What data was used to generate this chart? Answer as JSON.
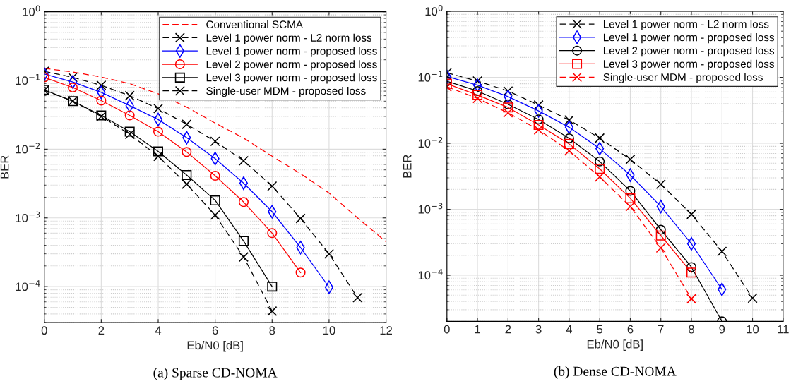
{
  "chart_data": [
    {
      "type": "line",
      "title": "(a) Sparse CD-NOMA",
      "xlabel": "Eb/N0 [dB]",
      "ylabel": "BER",
      "log": true,
      "grid": true,
      "legend": "top right",
      "xlim": [
        0,
        12
      ],
      "xticks": [
        0,
        2,
        4,
        6,
        8,
        10,
        12
      ],
      "ylim": [
        3e-05,
        1
      ],
      "yticks": [
        {
          "value": 1,
          "label": "10$^{0}$"
        },
        {
          "value": 0.1,
          "label": "10$^{−1}$"
        },
        {
          "value": 0.01,
          "label": "10$^{−2}$"
        },
        {
          "value": 0.001,
          "label": "10$^{−3}$"
        },
        {
          "value": 0.0001,
          "label": "10$^{−4}$"
        }
      ],
      "series": [
        {
          "name": "Conventional SCMA",
          "color": "#ff0000",
          "line_style": "dashed",
          "marker": "none",
          "x": [
            0,
            1,
            2,
            3,
            4,
            5,
            6,
            7,
            8,
            9,
            10,
            11,
            12
          ],
          "values": [
            0.15,
            0.133,
            0.112,
            0.09,
            0.064,
            0.041,
            0.024,
            0.0145,
            0.0079,
            0.0044,
            0.0023,
            0.001,
            0.00045
          ]
        },
        {
          "name": "Level 1 power norm - L2 norm loss",
          "color": "#000000",
          "line_style": "dashed",
          "marker": "cross",
          "x": [
            0,
            1,
            2,
            3,
            4,
            5,
            6,
            7,
            8,
            9,
            10,
            11
          ],
          "values": [
            0.136,
            0.111,
            0.085,
            0.06,
            0.039,
            0.023,
            0.013,
            0.0068,
            0.0029,
            0.00098,
            0.0003,
            6.9e-05
          ]
        },
        {
          "name": "Level 1 power norm - proposed loss",
          "color": "#0000ff",
          "line_style": "solid",
          "marker": "diamond",
          "x": [
            0,
            1,
            2,
            3,
            4,
            5,
            6,
            7,
            8,
            9,
            10
          ],
          "values": [
            0.124,
            0.095,
            0.067,
            0.043,
            0.027,
            0.0147,
            0.0073,
            0.0032,
            0.00123,
            0.00037,
            9.8e-05
          ]
        },
        {
          "name": "Level 2 power norm - proposed loss",
          "color": "#ff0000",
          "line_style": "solid",
          "marker": "circle",
          "x": [
            0,
            1,
            2,
            3,
            4,
            5,
            6,
            7,
            8,
            9
          ],
          "values": [
            0.111,
            0.079,
            0.051,
            0.031,
            0.018,
            0.0091,
            0.0041,
            0.0017,
            0.0006,
            0.00016
          ]
        },
        {
          "name": "Level 3 power norm - proposed loss",
          "color": "#000000",
          "line_style": "solid",
          "marker": "square",
          "x": [
            0,
            1,
            2,
            3,
            4,
            5,
            6,
            7,
            8
          ],
          "values": [
            0.073,
            0.05,
            0.031,
            0.018,
            0.0093,
            0.0042,
            0.0018,
            0.00046,
            0.0001
          ]
        },
        {
          "name": "Single-user MDM - proposed loss",
          "color": "#000000",
          "line_style": "dashed",
          "marker": "cross",
          "x": [
            0,
            1,
            2,
            3,
            4,
            5,
            6,
            7,
            8
          ],
          "values": [
            0.072,
            0.05,
            0.03,
            0.0165,
            0.0079,
            0.0031,
            0.0011,
            0.00027,
            4.4e-05
          ]
        }
      ]
    },
    {
      "type": "line",
      "title": "(b) Dense CD-NOMA",
      "xlabel": "Eb/N0 [dB]",
      "ylabel": "BER",
      "log": true,
      "grid": true,
      "legend": "top right",
      "xlim": [
        0,
        11
      ],
      "xticks": [
        0,
        1,
        2,
        3,
        4,
        5,
        6,
        7,
        8,
        9,
        10,
        11
      ],
      "ylim": [
        2e-05,
        1
      ],
      "yticks": [
        {
          "value": 1,
          "label": "10$^{0}$"
        },
        {
          "value": 0.1,
          "label": "10$^{−1}$"
        },
        {
          "value": 0.01,
          "label": "10$^{−2}$"
        },
        {
          "value": 0.001,
          "label": "10$^{−3}$"
        },
        {
          "value": 0.0001,
          "label": "10$^{−4}$"
        }
      ],
      "series": [
        {
          "name": "Level 1 power norm - L2 norm loss",
          "color": "#000000",
          "line_style": "dashed",
          "marker": "cross",
          "x": [
            0,
            1,
            2,
            3,
            4,
            5,
            6,
            7,
            8,
            9,
            10
          ],
          "values": [
            0.117,
            0.088,
            0.062,
            0.038,
            0.0225,
            0.012,
            0.0057,
            0.0024,
            0.00084,
            0.00023,
            4.5e-05
          ]
        },
        {
          "name": "Level 1 power norm - proposed loss",
          "color": "#0000ff",
          "line_style": "solid",
          "marker": "diamond",
          "x": [
            0,
            1,
            2,
            3,
            4,
            5,
            6,
            7,
            8,
            9
          ],
          "values": [
            0.103,
            0.076,
            0.051,
            0.031,
            0.0175,
            0.0083,
            0.0033,
            0.0011,
            0.0003,
            6.1e-05
          ]
        },
        {
          "name": "Level 2 power norm - proposed loss",
          "color": "#000000",
          "line_style": "solid",
          "marker": "circle",
          "x": [
            0,
            1,
            2,
            3,
            4,
            5,
            6,
            7,
            8,
            9
          ],
          "values": [
            0.087,
            0.062,
            0.039,
            0.023,
            0.0119,
            0.0053,
            0.0019,
            0.00049,
            0.000133,
            2e-05
          ]
        },
        {
          "name": "Level 3 power norm - proposed loss",
          "color": "#ff0000",
          "line_style": "solid",
          "marker": "square",
          "x": [
            0,
            1,
            2,
            3,
            4,
            5,
            6,
            7,
            8
          ],
          "values": [
            0.08,
            0.054,
            0.035,
            0.019,
            0.0098,
            0.0041,
            0.00147,
            0.0004,
            0.00011
          ]
        },
        {
          "name": "Single-user MDM - proposed loss",
          "color": "#ff0000",
          "line_style": "dashed",
          "marker": "cross",
          "x": [
            0,
            1,
            2,
            3,
            4,
            5,
            6,
            7,
            8
          ],
          "values": [
            0.072,
            0.048,
            0.029,
            0.016,
            0.0077,
            0.0031,
            0.0011,
            0.00026,
            4.4e-05
          ]
        }
      ]
    }
  ]
}
